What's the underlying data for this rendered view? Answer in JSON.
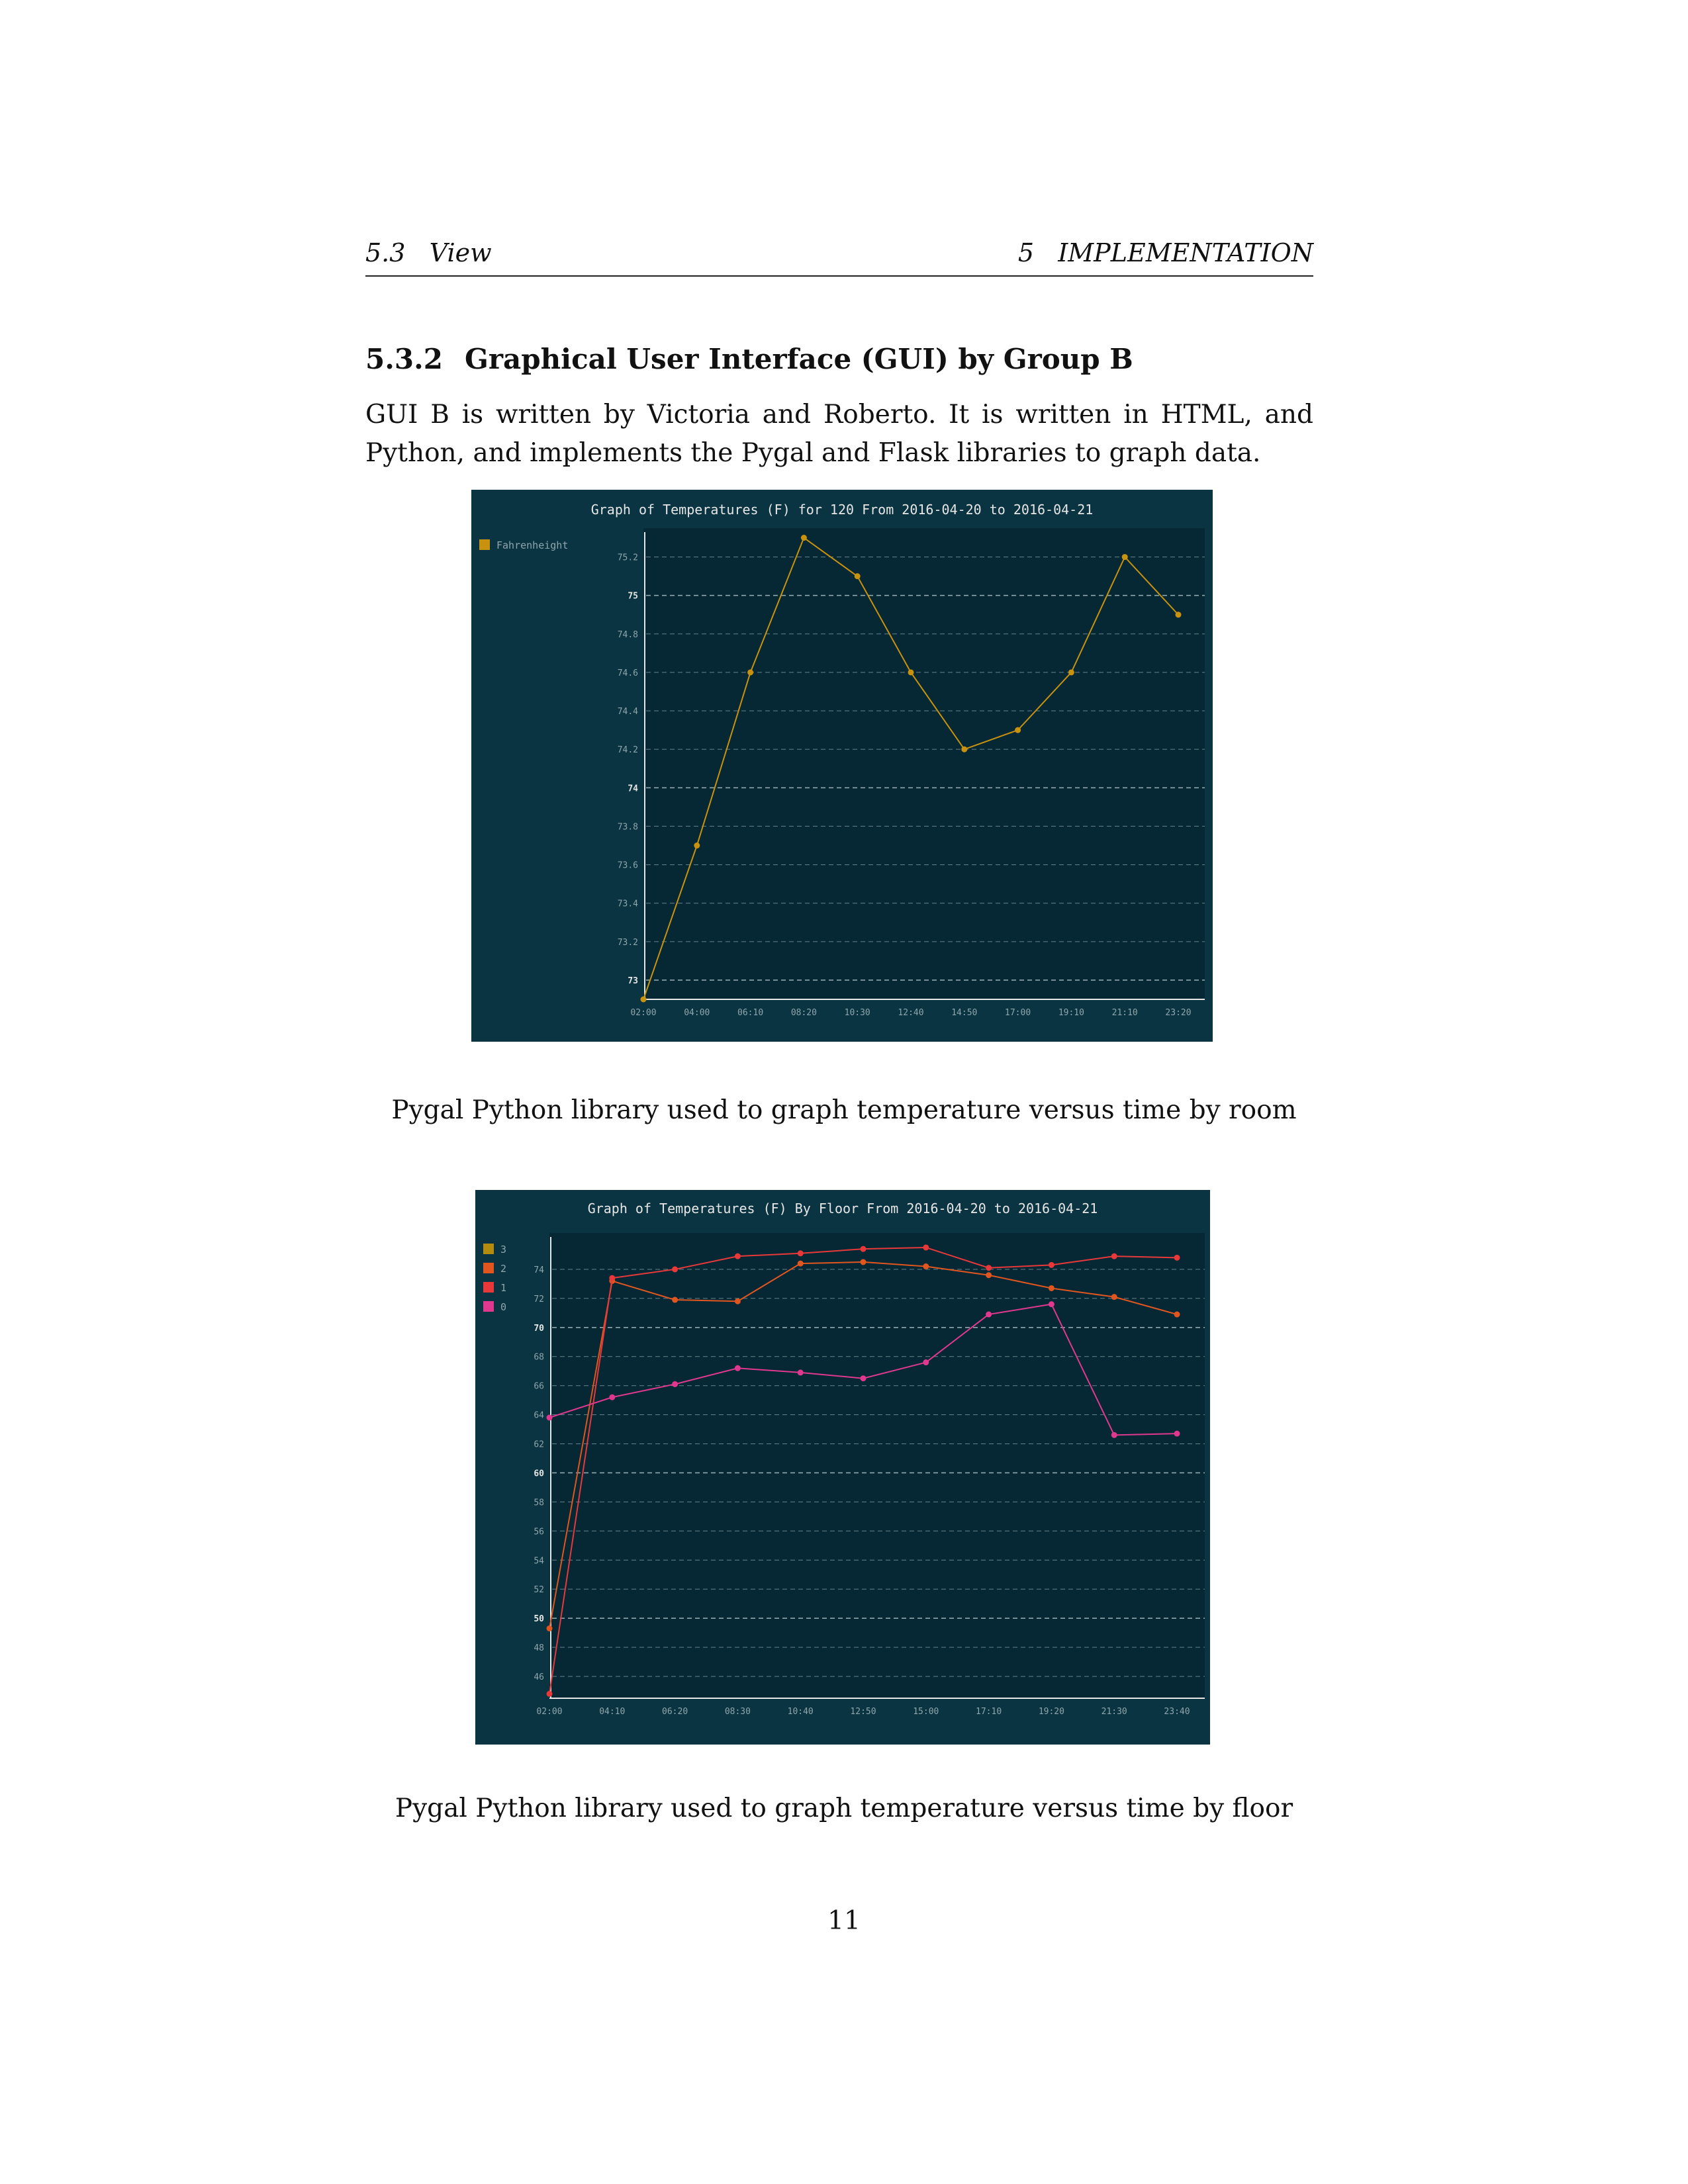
{
  "running_head": {
    "left": "5.3   View",
    "right": "5   IMPLEMENTATION"
  },
  "section": {
    "number": "5.3.2",
    "title": "Graphical User Interface (GUI) by Group B",
    "body": "GUI B is written by Victoria and Roberto. It is written in HTML, and Python, and implements the Pygal and Flask libraries to graph data."
  },
  "chart_data": [
    {
      "type": "line",
      "title": "Graph of Temperatures (F) for 120 From 2016-04-20 to 2016-04-21",
      "categories": [
        "02:00",
        "04:00",
        "06:10",
        "08:20",
        "10:30",
        "12:40",
        "14:50",
        "17:00",
        "19:10",
        "21:10",
        "23:20"
      ],
      "yticks": [
        "73",
        "73.2",
        "73.4",
        "73.6",
        "73.8",
        "74",
        "74.2",
        "74.4",
        "74.6",
        "74.8",
        "75",
        "75.2"
      ],
      "ylim": [
        72.9,
        75.35
      ],
      "grid": true,
      "legend_position": "left",
      "series": [
        {
          "name": "Fahrenheight",
          "color": "#c8920f",
          "x": [
            0,
            1,
            2,
            3,
            4,
            5,
            6,
            7,
            8,
            9,
            10
          ],
          "values": [
            72.9,
            73.7,
            74.6,
            75.3,
            75.1,
            74.6,
            74.2,
            74.3,
            74.6,
            75.2,
            74.9
          ]
        }
      ]
    },
    {
      "type": "line",
      "title": "Graph of Temperatures (F) By Floor From 2016-04-20 to 2016-04-21",
      "categories": [
        "02:00",
        "04:10",
        "06:20",
        "08:30",
        "10:40",
        "12:50",
        "15:00",
        "17:10",
        "19:20",
        "21:30",
        "23:40"
      ],
      "yticks": [
        "46",
        "48",
        "50",
        "52",
        "54",
        "56",
        "58",
        "60",
        "62",
        "64",
        "66",
        "68",
        "70",
        "72",
        "74"
      ],
      "ylim": [
        44.5,
        76.5
      ],
      "grid": true,
      "legend_position": "left",
      "series": [
        {
          "name": "3",
          "color": "#b38b0f",
          "x": [],
          "values": []
        },
        {
          "name": "2",
          "color": "#e0561e",
          "x": [
            0,
            1,
            2,
            3,
            4,
            5,
            6,
            7,
            8,
            9,
            10
          ],
          "values": [
            49.3,
            73.2,
            71.9,
            71.8,
            74.4,
            74.5,
            74.2,
            73.6,
            72.7,
            72.1,
            70.9
          ]
        },
        {
          "name": "1",
          "color": "#e8383a",
          "x": [
            0,
            1,
            2,
            3,
            4,
            5,
            6,
            7,
            8,
            9,
            10
          ],
          "values": [
            44.8,
            73.4,
            74.0,
            74.9,
            75.1,
            75.4,
            75.5,
            74.1,
            74.3,
            74.9,
            74.8
          ]
        },
        {
          "name": "0",
          "color": "#e0388e",
          "x": [
            0,
            1,
            2,
            3,
            4,
            5,
            6,
            7,
            8,
            9,
            10
          ],
          "values": [
            63.8,
            65.2,
            66.1,
            67.2,
            66.9,
            66.5,
            67.6,
            70.9,
            71.6,
            62.6,
            62.7
          ]
        }
      ]
    }
  ],
  "captions": {
    "fig1": "Pygal Python library used to graph temperature versus time by room",
    "fig2": "Pygal Python library used to graph temperature versus time by floor"
  },
  "page_number": "11"
}
